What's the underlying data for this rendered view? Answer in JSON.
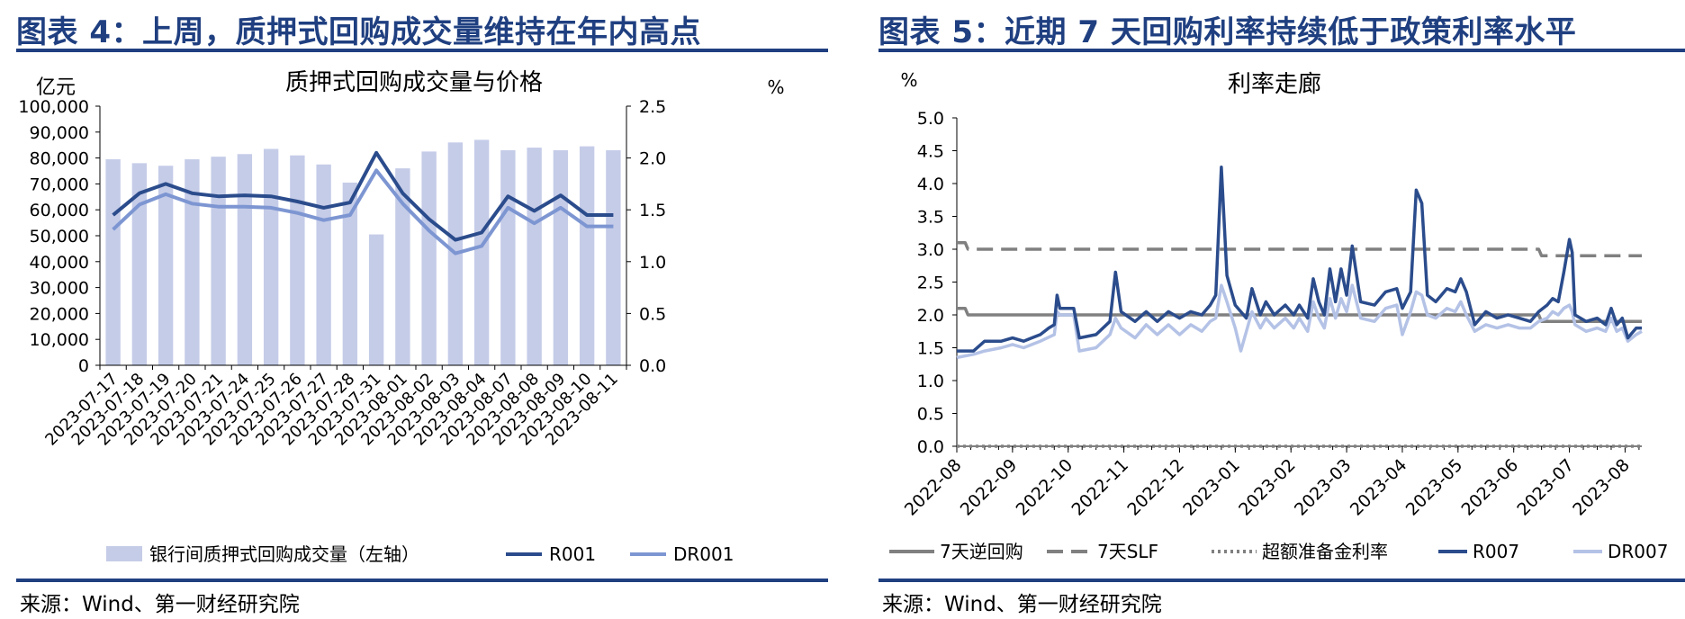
{
  "left_panel": {
    "title": "图表 4：上周，质押式回购成交量维持在年内高点",
    "source": "来源：Wind、第一财经研究院"
  },
  "right_panel": {
    "title": "图表 5：近期 7 天回购利率持续低于政策利率水平",
    "source": "来源：Wind、第一财经研究院"
  },
  "chart_data": [
    {
      "type": "bar",
      "title": "质押式回购成交量与价格",
      "left_axis_unit": "亿元",
      "right_axis_unit": "%",
      "ylim_left": [
        0,
        100000
      ],
      "ylim_right": [
        0,
        2.5
      ],
      "left_tick_labels": [
        "0",
        "10,000",
        "20,000",
        "30,000",
        "40,000",
        "50,000",
        "60,000",
        "70,000",
        "80,000",
        "90,000",
        "100,000"
      ],
      "right_tick_labels": [
        "0.0",
        "0.5",
        "1.0",
        "1.5",
        "2.0",
        "2.5"
      ],
      "categories": [
        "2023-07-17",
        "2023-07-18",
        "2023-07-19",
        "2023-07-20",
        "2023-07-21",
        "2023-07-24",
        "2023-07-25",
        "2023-07-26",
        "2023-07-27",
        "2023-07-28",
        "2023-07-31",
        "2023-08-01",
        "2023-08-02",
        "2023-08-03",
        "2023-08-04",
        "2023-08-07",
        "2023-08-08",
        "2023-08-09",
        "2023-08-10",
        "2023-08-11"
      ],
      "series": [
        {
          "name": "银行间质押式回购成交量（左轴）",
          "axis": "left",
          "kind": "bar",
          "color": "#c5cce8",
          "values": [
            79500,
            78000,
            77000,
            79500,
            80500,
            81500,
            83500,
            81000,
            77500,
            70500,
            50500,
            76000,
            82500,
            86000,
            87000,
            83000,
            84000,
            83000,
            84500,
            83000
          ]
        },
        {
          "name": "R001",
          "axis": "right",
          "kind": "line",
          "color": "#2b4c8c",
          "values": [
            1.45,
            1.66,
            1.75,
            1.66,
            1.63,
            1.64,
            1.63,
            1.58,
            1.52,
            1.57,
            2.05,
            1.66,
            1.41,
            1.21,
            1.28,
            1.63,
            1.49,
            1.64,
            1.45,
            1.45
          ]
        },
        {
          "name": "DR001",
          "axis": "right",
          "kind": "line",
          "color": "#7d96d2",
          "values": [
            1.31,
            1.55,
            1.65,
            1.56,
            1.53,
            1.53,
            1.52,
            1.47,
            1.4,
            1.45,
            1.88,
            1.56,
            1.3,
            1.08,
            1.15,
            1.52,
            1.37,
            1.52,
            1.34,
            1.34
          ]
        }
      ],
      "legend_position": "bottom"
    },
    {
      "type": "line",
      "title": "利率走廊",
      "ylabel_unit": "%",
      "ylim": [
        0,
        5.0
      ],
      "y_tick_labels": [
        "0.0",
        "0.5",
        "1.0",
        "1.5",
        "2.0",
        "2.5",
        "3.0",
        "3.5",
        "4.0",
        "4.5",
        "5.0"
      ],
      "x_tick_labels": [
        "2022-08",
        "2022-09",
        "2022-10",
        "2022-11",
        "2022-12",
        "2023-01",
        "2023-02",
        "2023-03",
        "2023-04",
        "2023-05",
        "2023-06",
        "2023-07",
        "2023-08"
      ],
      "x_range_months": [
        0,
        12.3
      ],
      "series": [
        {
          "name": "7天逆回购",
          "style": "solid",
          "color": "#808080",
          "points": [
            [
              0.0,
              2.1
            ],
            [
              0.15,
              2.1
            ],
            [
              0.2,
              2.0
            ],
            [
              10.45,
              2.0
            ],
            [
              10.5,
              1.9
            ],
            [
              12.3,
              1.9
            ]
          ]
        },
        {
          "name": "7天SLF",
          "style": "dashed",
          "color": "#808080",
          "points": [
            [
              0.0,
              3.1
            ],
            [
              0.15,
              3.1
            ],
            [
              0.2,
              3.0
            ],
            [
              10.45,
              3.0
            ],
            [
              10.5,
              2.9
            ],
            [
              12.3,
              2.9
            ]
          ]
        },
        {
          "name": "超额准备金利率",
          "style": "dotted",
          "color": "#808080",
          "points": [
            [
              0.0,
              0.0
            ],
            [
              12.3,
              0.0
            ]
          ]
        },
        {
          "name": "R007",
          "style": "solid",
          "color": "#2b4c8c",
          "points": [
            [
              0.0,
              1.45
            ],
            [
              0.3,
              1.45
            ],
            [
              0.5,
              1.6
            ],
            [
              0.8,
              1.6
            ],
            [
              1.0,
              1.65
            ],
            [
              1.2,
              1.6
            ],
            [
              1.5,
              1.7
            ],
            [
              1.65,
              1.8
            ],
            [
              1.75,
              1.85
            ],
            [
              1.8,
              2.3
            ],
            [
              1.85,
              2.1
            ],
            [
              2.1,
              2.1
            ],
            [
              2.2,
              1.65
            ],
            [
              2.5,
              1.7
            ],
            [
              2.75,
              1.9
            ],
            [
              2.85,
              2.65
            ],
            [
              2.95,
              2.05
            ],
            [
              3.2,
              1.9
            ],
            [
              3.4,
              2.05
            ],
            [
              3.6,
              1.9
            ],
            [
              3.8,
              2.05
            ],
            [
              4.0,
              1.95
            ],
            [
              4.2,
              2.05
            ],
            [
              4.4,
              2.0
            ],
            [
              4.55,
              2.15
            ],
            [
              4.65,
              2.3
            ],
            [
              4.75,
              4.25
            ],
            [
              4.85,
              2.6
            ],
            [
              5.0,
              2.15
            ],
            [
              5.2,
              1.95
            ],
            [
              5.3,
              2.4
            ],
            [
              5.45,
              2.0
            ],
            [
              5.55,
              2.2
            ],
            [
              5.7,
              2.0
            ],
            [
              5.9,
              2.15
            ],
            [
              6.05,
              2.0
            ],
            [
              6.15,
              2.15
            ],
            [
              6.3,
              1.95
            ],
            [
              6.4,
              2.55
            ],
            [
              6.5,
              2.2
            ],
            [
              6.6,
              2.0
            ],
            [
              6.7,
              2.7
            ],
            [
              6.8,
              2.2
            ],
            [
              6.9,
              2.7
            ],
            [
              7.0,
              2.3
            ],
            [
              7.1,
              3.05
            ],
            [
              7.25,
              2.2
            ],
            [
              7.5,
              2.15
            ],
            [
              7.7,
              2.35
            ],
            [
              7.9,
              2.4
            ],
            [
              8.0,
              2.1
            ],
            [
              8.15,
              2.35
            ],
            [
              8.25,
              3.9
            ],
            [
              8.35,
              3.7
            ],
            [
              8.45,
              2.3
            ],
            [
              8.6,
              2.2
            ],
            [
              8.8,
              2.4
            ],
            [
              8.95,
              2.35
            ],
            [
              9.05,
              2.55
            ],
            [
              9.15,
              2.35
            ],
            [
              9.3,
              1.85
            ],
            [
              9.5,
              2.05
            ],
            [
              9.7,
              1.95
            ],
            [
              9.9,
              2.0
            ],
            [
              10.1,
              1.95
            ],
            [
              10.3,
              1.9
            ],
            [
              10.45,
              2.05
            ],
            [
              10.6,
              2.15
            ],
            [
              10.7,
              2.25
            ],
            [
              10.8,
              2.2
            ],
            [
              10.9,
              2.65
            ],
            [
              11.0,
              3.15
            ],
            [
              11.05,
              2.95
            ],
            [
              11.1,
              2.0
            ],
            [
              11.3,
              1.9
            ],
            [
              11.5,
              1.95
            ],
            [
              11.65,
              1.85
            ],
            [
              11.75,
              2.1
            ],
            [
              11.85,
              1.85
            ],
            [
              11.95,
              1.95
            ],
            [
              12.05,
              1.65
            ],
            [
              12.2,
              1.8
            ],
            [
              12.3,
              1.8
            ]
          ]
        },
        {
          "name": "DR007",
          "style": "solid",
          "color": "#b4c2e6",
          "points": [
            [
              0.0,
              1.35
            ],
            [
              0.3,
              1.4
            ],
            [
              0.5,
              1.45
            ],
            [
              0.8,
              1.5
            ],
            [
              1.0,
              1.55
            ],
            [
              1.2,
              1.5
            ],
            [
              1.5,
              1.6
            ],
            [
              1.75,
              1.7
            ],
            [
              1.8,
              2.05
            ],
            [
              1.85,
              2.0
            ],
            [
              2.1,
              2.0
            ],
            [
              2.2,
              1.45
            ],
            [
              2.5,
              1.5
            ],
            [
              2.75,
              1.7
            ],
            [
              2.85,
              1.95
            ],
            [
              2.95,
              1.8
            ],
            [
              3.2,
              1.65
            ],
            [
              3.4,
              1.85
            ],
            [
              3.6,
              1.7
            ],
            [
              3.8,
              1.85
            ],
            [
              4.0,
              1.7
            ],
            [
              4.2,
              1.85
            ],
            [
              4.4,
              1.75
            ],
            [
              4.55,
              1.9
            ],
            [
              4.65,
              1.95
            ],
            [
              4.75,
              2.45
            ],
            [
              4.85,
              2.2
            ],
            [
              5.0,
              1.8
            ],
            [
              5.1,
              1.45
            ],
            [
              5.2,
              1.75
            ],
            [
              5.3,
              2.05
            ],
            [
              5.45,
              1.8
            ],
            [
              5.55,
              1.95
            ],
            [
              5.7,
              1.8
            ],
            [
              5.9,
              1.95
            ],
            [
              6.05,
              1.8
            ],
            [
              6.15,
              1.95
            ],
            [
              6.3,
              1.75
            ],
            [
              6.4,
              2.2
            ],
            [
              6.5,
              1.95
            ],
            [
              6.6,
              1.8
            ],
            [
              6.7,
              2.25
            ],
            [
              6.8,
              1.95
            ],
            [
              6.9,
              2.25
            ],
            [
              7.0,
              2.05
            ],
            [
              7.1,
              2.45
            ],
            [
              7.25,
              1.95
            ],
            [
              7.5,
              1.9
            ],
            [
              7.7,
              2.1
            ],
            [
              7.9,
              2.15
            ],
            [
              8.0,
              1.7
            ],
            [
              8.15,
              2.05
            ],
            [
              8.25,
              2.35
            ],
            [
              8.35,
              2.3
            ],
            [
              8.45,
              2.0
            ],
            [
              8.6,
              1.95
            ],
            [
              8.8,
              2.1
            ],
            [
              8.95,
              2.05
            ],
            [
              9.05,
              2.2
            ],
            [
              9.15,
              2.0
            ],
            [
              9.3,
              1.75
            ],
            [
              9.5,
              1.85
            ],
            [
              9.7,
              1.8
            ],
            [
              9.9,
              1.85
            ],
            [
              10.1,
              1.8
            ],
            [
              10.3,
              1.8
            ],
            [
              10.45,
              1.9
            ],
            [
              10.6,
              1.95
            ],
            [
              10.7,
              2.05
            ],
            [
              10.8,
              2.0
            ],
            [
              10.9,
              2.1
            ],
            [
              11.0,
              2.15
            ],
            [
              11.05,
              2.05
            ],
            [
              11.1,
              1.85
            ],
            [
              11.3,
              1.75
            ],
            [
              11.5,
              1.8
            ],
            [
              11.65,
              1.75
            ],
            [
              11.75,
              1.95
            ],
            [
              11.85,
              1.75
            ],
            [
              11.95,
              1.8
            ],
            [
              12.05,
              1.6
            ],
            [
              12.2,
              1.7
            ],
            [
              12.3,
              1.75
            ]
          ]
        }
      ],
      "legend_position": "bottom"
    }
  ]
}
